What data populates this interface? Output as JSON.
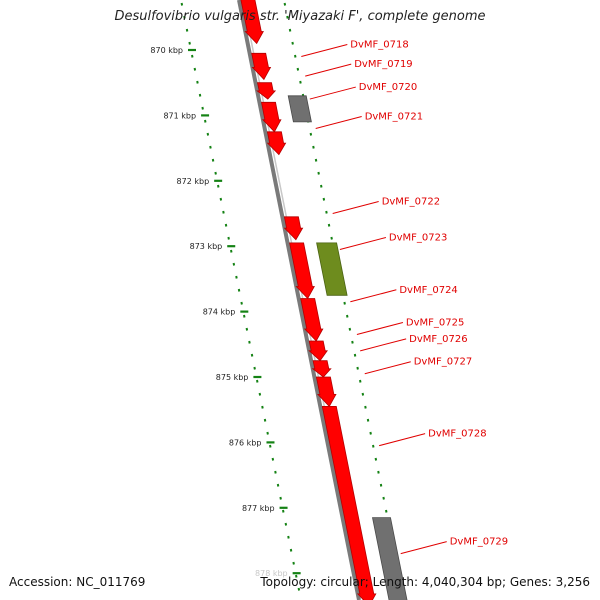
{
  "title": "Desulfovibrio vulgaris str. 'Miyazaki F', complete genome",
  "footer": {
    "accession": "Accession: NC_011769",
    "summary": "Topology: circular; Length: 4,040,304 bp; Genes: 3,256"
  },
  "colors": {
    "gene": "#ff0000",
    "gene_dark": "#b40000",
    "pseudo_gene": "#707070",
    "rna_gene": "#6e8c1e",
    "dotted_ruler": "#148214",
    "backbone": "#7a7a7a",
    "label": "#e00000"
  },
  "position_ticks": [
    {
      "label": "870 kbp",
      "kbp": 870
    },
    {
      "label": "871 kbp",
      "kbp": 871
    },
    {
      "label": "872 kbp",
      "kbp": 872
    },
    {
      "label": "873 kbp",
      "kbp": 873
    },
    {
      "label": "874 kbp",
      "kbp": 874
    },
    {
      "label": "875 kbp",
      "kbp": 875
    },
    {
      "label": "876 kbp",
      "kbp": 876
    },
    {
      "label": "877 kbp",
      "kbp": 877
    },
    {
      "label": "878 kbp",
      "kbp": 878,
      "faint": true
    }
  ],
  "gene_labels": [
    {
      "name": "DvMF_0718",
      "kbp": 870.1
    },
    {
      "name": "DvMF_0719",
      "kbp": 870.4
    },
    {
      "name": "DvMF_0720",
      "kbp": 870.75
    },
    {
      "name": "DvMF_0721",
      "kbp": 871.2
    },
    {
      "name": "DvMF_0722",
      "kbp": 872.5
    },
    {
      "name": "DvMF_0723",
      "kbp": 873.05
    },
    {
      "name": "DvMF_0724",
      "kbp": 873.85
    },
    {
      "name": "DvMF_0725",
      "kbp": 874.35
    },
    {
      "name": "DvMF_0726",
      "kbp": 874.6
    },
    {
      "name": "DvMF_0727",
      "kbp": 874.95
    },
    {
      "name": "DvMF_0728",
      "kbp": 876.05
    },
    {
      "name": "DvMF_0729",
      "kbp": 877.7
    }
  ],
  "features": [
    {
      "kind": "gene",
      "strand": "inner",
      "start": 869.2,
      "end": 869.9
    },
    {
      "kind": "gene",
      "strand": "inner",
      "start": 870.05,
      "end": 870.45
    },
    {
      "kind": "gene",
      "strand": "inner",
      "start": 870.5,
      "end": 870.75
    },
    {
      "kind": "pseudo",
      "strand": "outer",
      "start": 870.7,
      "end": 871.1
    },
    {
      "kind": "gene",
      "strand": "inner",
      "start": 870.8,
      "end": 871.25
    },
    {
      "kind": "gene",
      "strand": "inner",
      "start": 871.25,
      "end": 871.6
    },
    {
      "kind": "gene",
      "strand": "inner",
      "start": 872.55,
      "end": 872.9
    },
    {
      "kind": "rna",
      "strand": "outer",
      "start": 872.95,
      "end": 873.75
    },
    {
      "kind": "gene",
      "strand": "inner",
      "start": 872.95,
      "end": 873.8
    },
    {
      "kind": "gene",
      "strand": "inner",
      "start": 873.8,
      "end": 874.45
    },
    {
      "kind": "gene",
      "strand": "inner",
      "start": 874.45,
      "end": 874.75
    },
    {
      "kind": "gene",
      "strand": "inner",
      "start": 874.75,
      "end": 875.0
    },
    {
      "kind": "gene",
      "strand": "inner",
      "start": 875.0,
      "end": 875.45
    },
    {
      "kind": "gene",
      "strand": "inner",
      "start": 875.45,
      "end": 878.5
    },
    {
      "kind": "pseudo",
      "strand": "outer",
      "start": 877.15,
      "end": 878.5
    }
  ]
}
